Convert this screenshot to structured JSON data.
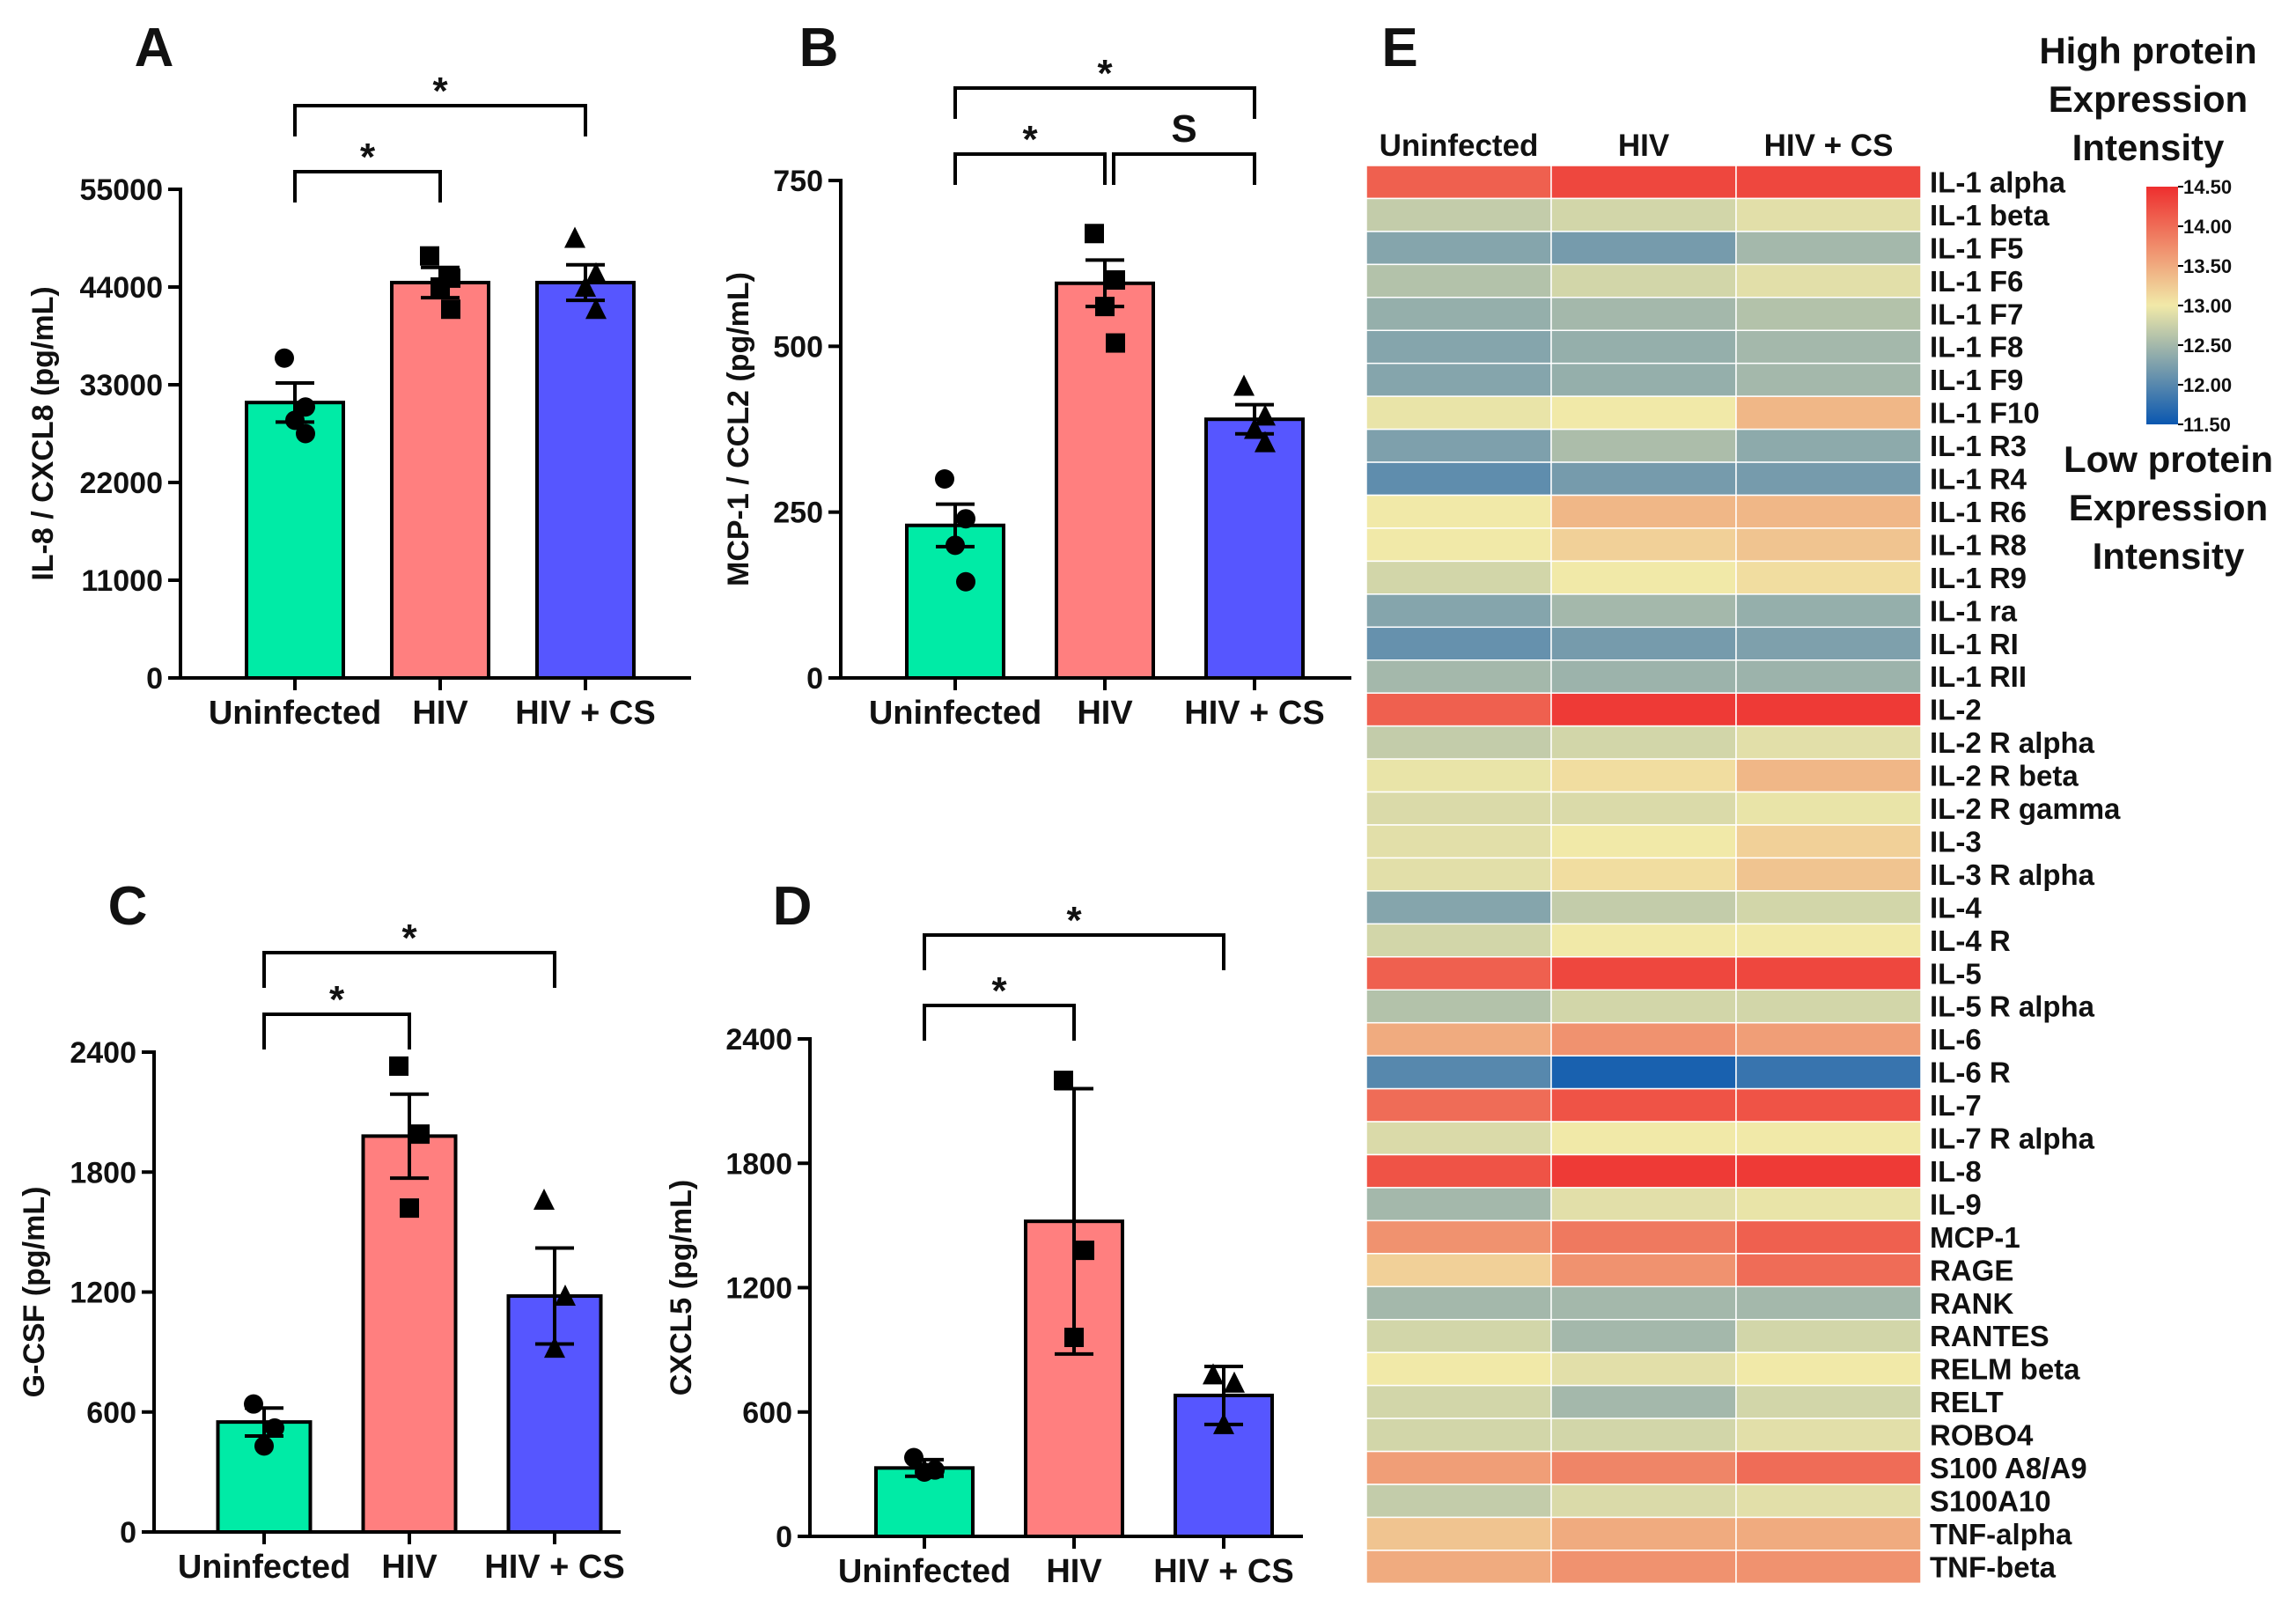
{
  "figure": "multi-panel cytokine figure",
  "colors": {
    "uninfected": "#00EBA6",
    "hiv": "#FF7F7F",
    "hiv_cs": "#5656FF",
    "axis": "#000000"
  },
  "chart_data": [
    {
      "panel": "A",
      "type": "bar",
      "ylabel": "IL-8 / CXCL8 (pg/mL)",
      "categories": [
        "Uninfected",
        "HIV",
        "HIV + CS"
      ],
      "values": [
        31000,
        44500,
        44500
      ],
      "errors": [
        2200,
        1700,
        2000
      ],
      "points": [
        [
          36000,
          30500,
          29000,
          27500
        ],
        [
          47500,
          45000,
          44000,
          41500
        ],
        [
          49500,
          45500,
          44000,
          41500
        ]
      ],
      "marker": [
        "circle",
        "square",
        "triangle"
      ],
      "ylim": [
        0,
        55000
      ],
      "yticks": [
        0,
        11000,
        22000,
        33000,
        44000,
        55000
      ],
      "ytick_labels": [
        "0",
        "11000",
        "22000",
        "33000",
        "44000",
        "55000"
      ],
      "significance": [
        {
          "from": 0,
          "to": 1,
          "label": "*",
          "level": 1
        },
        {
          "from": 0,
          "to": 2,
          "label": "*",
          "level": 2
        }
      ]
    },
    {
      "panel": "B",
      "type": "bar",
      "ylabel": "MCP-1 / CCL2 (pg/mL)",
      "categories": [
        "Uninfected",
        "HIV",
        "HIV + CS"
      ],
      "values": [
        230,
        595,
        390
      ],
      "errors": [
        32,
        35,
        22
      ],
      "points": [
        [
          300,
          240,
          200,
          145
        ],
        [
          670,
          600,
          560,
          505
        ],
        [
          440,
          395,
          375,
          355
        ]
      ],
      "marker": [
        "circle",
        "square",
        "triangle"
      ],
      "ylim": [
        0,
        750
      ],
      "yticks": [
        0,
        250,
        500,
        750
      ],
      "ytick_labels": [
        "0",
        "250",
        "500",
        "750"
      ],
      "significance": [
        {
          "from": 0,
          "to": 1,
          "label": "*",
          "level": 1
        },
        {
          "from": 1,
          "to": 2,
          "label": "S",
          "level": 1
        },
        {
          "from": 0,
          "to": 2,
          "label": "*",
          "level": 2
        }
      ]
    },
    {
      "panel": "C",
      "type": "bar",
      "ylabel": "G-CSF (pg/mL)",
      "categories": [
        "Uninfected",
        "HIV",
        "HIV + CS"
      ],
      "values": [
        550,
        1980,
        1180
      ],
      "errors": [
        70,
        210,
        240
      ],
      "points": [
        [
          640,
          520,
          430
        ],
        [
          2330,
          1990,
          1620
        ],
        [
          1660,
          1180,
          920
        ]
      ],
      "marker": [
        "circle",
        "square",
        "triangle"
      ],
      "ylim": [
        0,
        2400
      ],
      "yticks": [
        0,
        600,
        1200,
        1800,
        2400
      ],
      "ytick_labels": [
        "0",
        "600",
        "1200",
        "1800",
        "2400"
      ],
      "significance": [
        {
          "from": 0,
          "to": 1,
          "label": "*",
          "level": 1
        },
        {
          "from": 0,
          "to": 2,
          "label": "*",
          "level": 2
        }
      ]
    },
    {
      "panel": "D",
      "type": "bar",
      "ylabel": "CXCL5 (pg/mL)",
      "categories": [
        "Uninfected",
        "HIV",
        "HIV + CS"
      ],
      "values": [
        330,
        1520,
        680
      ],
      "errors": [
        40,
        640,
        140
      ],
      "points": [
        [
          380,
          320,
          310
        ],
        [
          2200,
          1380,
          960
        ],
        [
          780,
          740,
          540
        ]
      ],
      "marker": [
        "circle",
        "square",
        "triangle"
      ],
      "ylim": [
        0,
        2400
      ],
      "yticks": [
        0,
        600,
        1200,
        1800,
        2400
      ],
      "ytick_labels": [
        "0",
        "600",
        "1200",
        "1800",
        "2400"
      ],
      "significance": [
        {
          "from": 0,
          "to": 1,
          "label": "*",
          "level": 1
        },
        {
          "from": 0,
          "to": 2,
          "label": "*",
          "level": 2
        }
      ]
    },
    {
      "panel": "E",
      "type": "heatmap",
      "columns": [
        "Uninfected",
        "HIV",
        "HIV + CS"
      ],
      "rows": [
        "IL-1 alpha",
        "IL-1 beta",
        "IL-1 F5",
        "IL-1 F6",
        "IL-1 F7",
        "IL-1 F8",
        "IL-1 F9",
        "IL-1 F10",
        "IL-1 R3",
        "IL-1 R4",
        "IL-1 R6",
        "IL-1 R8",
        "IL-1 R9",
        "IL-1 ra",
        "IL-1 RI",
        "IL-1 RII",
        "IL-2",
        "IL-2 R alpha",
        "IL-2 R beta",
        "IL-2 R gamma",
        "IL-3",
        "IL-3 R alpha",
        "IL-4",
        "IL-4 R",
        "IL-5",
        "IL-5 R alpha",
        "IL-6",
        "IL-6 R",
        "IL-7",
        "IL-7 R alpha",
        "IL-8",
        "IL-9",
        "MCP-1",
        "RAGE",
        "RANK",
        "RANTES",
        "RELM beta",
        "RELT",
        "ROBO4",
        "S100 A8/A9",
        "S100A10",
        "TNF-alpha",
        "TNF-beta"
      ],
      "values": [
        [
          14.1,
          14.3,
          14.3
        ],
        [
          12.7,
          12.8,
          12.9
        ],
        [
          12.3,
          12.2,
          12.5
        ],
        [
          12.6,
          12.8,
          12.9
        ],
        [
          12.4,
          12.5,
          12.6
        ],
        [
          12.3,
          12.4,
          12.5
        ],
        [
          12.3,
          12.4,
          12.5
        ],
        [
          12.95,
          13.0,
          13.4
        ],
        [
          12.25,
          12.55,
          12.35
        ],
        [
          12.05,
          12.2,
          12.2
        ],
        [
          13.0,
          13.4,
          13.4
        ],
        [
          13.0,
          13.2,
          13.3
        ],
        [
          12.8,
          13.0,
          13.1
        ],
        [
          12.3,
          12.5,
          12.4
        ],
        [
          12.1,
          12.2,
          12.25
        ],
        [
          12.5,
          12.45,
          12.45
        ],
        [
          14.1,
          14.4,
          14.4
        ],
        [
          12.7,
          12.8,
          12.9
        ],
        [
          12.95,
          13.1,
          13.4
        ],
        [
          12.85,
          12.85,
          12.95
        ],
        [
          12.9,
          13.0,
          13.2
        ],
        [
          12.9,
          13.1,
          13.3
        ],
        [
          12.3,
          12.7,
          12.8
        ],
        [
          12.8,
          13.0,
          13.0
        ],
        [
          14.1,
          14.3,
          14.3
        ],
        [
          12.6,
          12.8,
          12.8
        ],
        [
          13.5,
          13.7,
          13.6
        ],
        [
          12.0,
          11.6,
          11.8
        ],
        [
          14.0,
          14.2,
          14.2
        ],
        [
          12.85,
          13.0,
          13.0
        ],
        [
          14.2,
          14.4,
          14.4
        ],
        [
          12.5,
          12.9,
          12.95
        ],
        [
          13.7,
          13.9,
          14.1
        ],
        [
          13.2,
          13.7,
          14.0
        ],
        [
          12.5,
          12.5,
          12.5
        ],
        [
          12.8,
          12.5,
          12.8
        ],
        [
          13.0,
          12.9,
          13.0
        ],
        [
          12.8,
          12.5,
          12.8
        ],
        [
          12.8,
          12.8,
          12.9
        ],
        [
          13.6,
          13.8,
          14.0
        ],
        [
          12.7,
          12.85,
          12.9
        ],
        [
          13.3,
          13.5,
          13.5
        ],
        [
          13.5,
          13.7,
          13.7
        ]
      ],
      "colorbar": {
        "min": 11.5,
        "max": 14.5,
        "ticks": [
          14.5,
          14.0,
          13.5,
          13.0,
          12.5,
          12.0,
          11.5
        ],
        "tick_labels": [
          "14.50",
          "14.00",
          "13.50",
          "13.00",
          "12.50",
          "12.00",
          "11.50"
        ],
        "high_label": [
          "High protein",
          "Expression",
          "Intensity"
        ],
        "low_label": [
          "Low protein",
          "Expression",
          "Intensity"
        ],
        "stops": [
          "#0A57B0",
          "#F1E9A8",
          "#EE2E2E"
        ]
      }
    }
  ]
}
